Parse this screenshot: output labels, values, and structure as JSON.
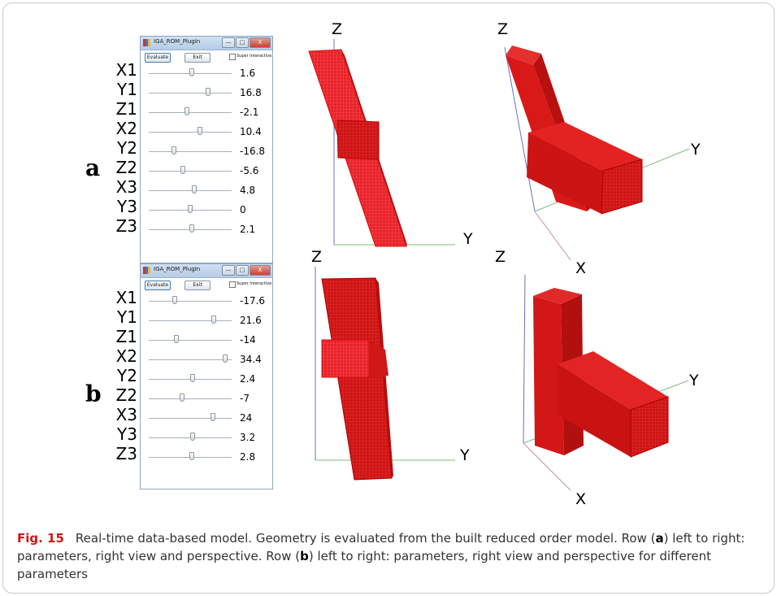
{
  "figure": {
    "row_labels": [
      "a",
      "b"
    ],
    "caption": {
      "number": "Fig. 15",
      "text_1": "Real-time data-based model. Geometry is evaluated from the built reduced order model. Row (",
      "row_a": "a",
      "text_2": ") left to right: parameters, right view and perspective. Row (",
      "row_b": "b",
      "text_3": ") left to right: parameters, right view and perspective for different parameters"
    }
  },
  "plugin": {
    "title": "IGA_ROM_PlugIn",
    "window_buttons": {
      "minimize": "—",
      "maximize": "□",
      "close": "X"
    },
    "evaluate_label": "Evaluate",
    "exit_label": "Exit",
    "super_interactive_label": "Super Interactive"
  },
  "panels": [
    {
      "params": [
        {
          "name": "X1",
          "value": "1.6",
          "slider": 0.52
        },
        {
          "name": "Y1",
          "value": "16.8",
          "slider": 0.72
        },
        {
          "name": "Z1",
          "value": "-2.1",
          "slider": 0.46
        },
        {
          "name": "X2",
          "value": "10.4",
          "slider": 0.62
        },
        {
          "name": "Y2",
          "value": "-16.8",
          "slider": 0.3
        },
        {
          "name": "Z2",
          "value": "-5.6",
          "slider": 0.41
        },
        {
          "name": "X3",
          "value": "4.8",
          "slider": 0.55
        },
        {
          "name": "Y3",
          "value": "0",
          "slider": 0.5
        },
        {
          "name": "Z3",
          "value": "2.1",
          "slider": 0.52
        }
      ]
    },
    {
      "params": [
        {
          "name": "X1",
          "value": "-17.6",
          "slider": 0.31
        },
        {
          "name": "Y1",
          "value": "21.6",
          "slider": 0.78
        },
        {
          "name": "Z1",
          "value": "-14",
          "slider": 0.33
        },
        {
          "name": "X2",
          "value": "34.4",
          "slider": 0.92
        },
        {
          "name": "Y2",
          "value": "2.4",
          "slider": 0.53
        },
        {
          "name": "Z2",
          "value": "-7",
          "slider": 0.4
        },
        {
          "name": "X3",
          "value": "24",
          "slider": 0.77
        },
        {
          "name": "Y3",
          "value": "3.2",
          "slider": 0.53
        },
        {
          "name": "Z3",
          "value": "2.8",
          "slider": 0.52
        }
      ]
    }
  ],
  "axis_labels": {
    "z": "Z",
    "y": "Y",
    "x": "X"
  },
  "colors": {
    "geometry": "#e31b1b",
    "mesh": "#ff5a5a",
    "z_axis": "#6f6fb8",
    "y_axis": "#7dbf7d",
    "x_axis": "#c88aa0",
    "caption_label": "#d01616"
  }
}
